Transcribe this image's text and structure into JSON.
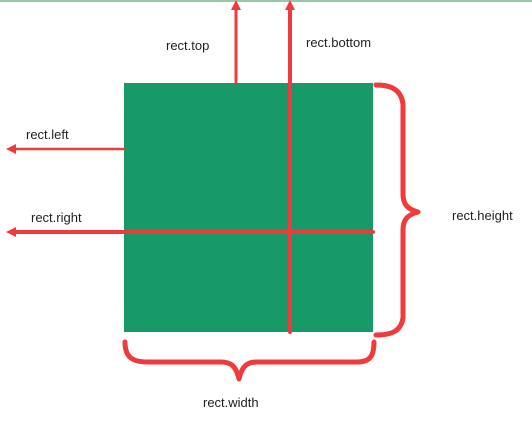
{
  "labels": {
    "top": "rect.top",
    "bottom": "rect.bottom",
    "left": "rect.left",
    "right": "rect.right",
    "height": "rect.height",
    "width": "rect.width"
  },
  "colors": {
    "box": "#179a68",
    "accent": "#ef3b3b",
    "grid": "#8a5a52",
    "top_border": "#9bc7a6"
  }
}
